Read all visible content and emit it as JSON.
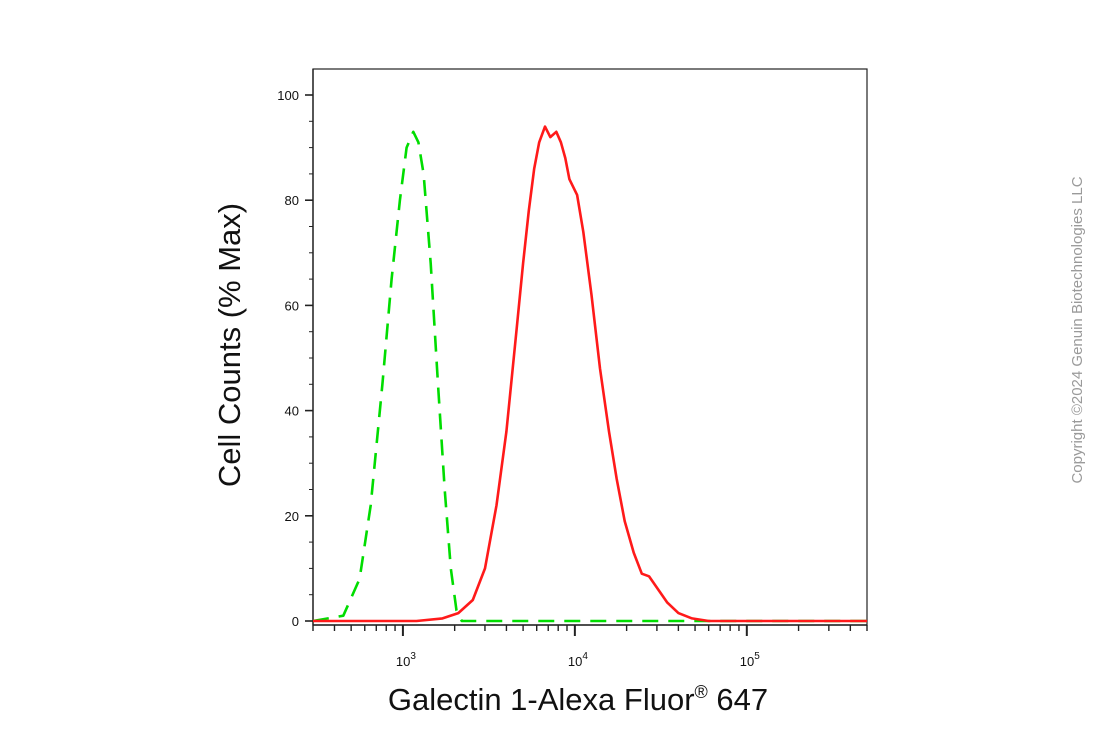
{
  "chart_data": {
    "type": "line",
    "xlabel": "Galectin 1-Alexa Fluor",
    "xlabel_sup": "®",
    "xlabel_suffix": " 647",
    "ylabel": "Cell Counts (% Max)",
    "x_scale": "log",
    "xlim": [
      300,
      500000
    ],
    "ylim": [
      0,
      100
    ],
    "y_ticks": [
      0,
      20,
      40,
      60,
      80,
      100
    ],
    "x_ticks": [
      {
        "value": 1000,
        "base": "10",
        "exp": "3"
      },
      {
        "value": 10000,
        "base": "10",
        "exp": "4"
      },
      {
        "value": 100000,
        "base": "10",
        "exp": "5"
      }
    ],
    "grid": false,
    "series": [
      {
        "color": "#00dd00",
        "dash": "dashed",
        "points": [
          [
            300,
            0
          ],
          [
            450,
            1
          ],
          [
            560,
            8
          ],
          [
            650,
            22
          ],
          [
            760,
            45
          ],
          [
            860,
            65
          ],
          [
            960,
            80
          ],
          [
            1050,
            90
          ],
          [
            1150,
            93
          ],
          [
            1230,
            91
          ],
          [
            1320,
            85
          ],
          [
            1450,
            68
          ],
          [
            1600,
            45
          ],
          [
            1750,
            25
          ],
          [
            1900,
            10
          ],
          [
            2050,
            2
          ],
          [
            2200,
            0
          ],
          [
            500000,
            0
          ]
        ]
      },
      {
        "color": "#ff1a1a",
        "dash": "solid",
        "points": [
          [
            300,
            0
          ],
          [
            1200,
            0
          ],
          [
            1700,
            0.5
          ],
          [
            2100,
            1.5
          ],
          [
            2550,
            4
          ],
          [
            3000,
            10
          ],
          [
            3500,
            22
          ],
          [
            4000,
            36
          ],
          [
            4600,
            56
          ],
          [
            5000,
            68
          ],
          [
            5400,
            78
          ],
          [
            5800,
            86
          ],
          [
            6200,
            91
          ],
          [
            6700,
            94
          ],
          [
            7200,
            92
          ],
          [
            7800,
            93
          ],
          [
            8300,
            91
          ],
          [
            8800,
            88
          ],
          [
            9300,
            84
          ],
          [
            10300,
            81
          ],
          [
            11200,
            74
          ],
          [
            12500,
            62
          ],
          [
            14000,
            48
          ],
          [
            15800,
            36
          ],
          [
            17500,
            27
          ],
          [
            19500,
            19
          ],
          [
            22000,
            13
          ],
          [
            24500,
            9
          ],
          [
            27000,
            8.5
          ],
          [
            30500,
            6
          ],
          [
            34500,
            3.5
          ],
          [
            40000,
            1.5
          ],
          [
            48000,
            0.5
          ],
          [
            60000,
            0
          ],
          [
            500000,
            0
          ]
        ]
      }
    ]
  },
  "watermark": "Copyright ©2024 Genuin Biotechnologies LLC"
}
